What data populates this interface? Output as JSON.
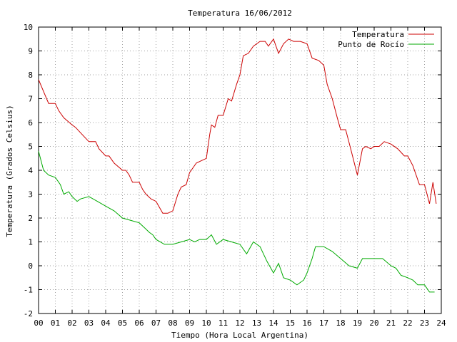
{
  "chart_data": {
    "type": "line",
    "title": "Temperatura 16/06/2012",
    "xlabel": "Tiempo (Hora Local Argentina)",
    "ylabel": "Temperatura (Grados Celsius)",
    "xlim": [
      0,
      24
    ],
    "ylim": [
      -2,
      10
    ],
    "x_ticks": [
      "00",
      "01",
      "02",
      "03",
      "04",
      "05",
      "06",
      "07",
      "08",
      "09",
      "10",
      "11",
      "12",
      "13",
      "14",
      "15",
      "16",
      "17",
      "18",
      "19",
      "20",
      "21",
      "22",
      "23",
      "24"
    ],
    "y_ticks": [
      "-2",
      "-1",
      "0",
      "1",
      "2",
      "3",
      "4",
      "5",
      "6",
      "7",
      "8",
      "9",
      "10"
    ],
    "grid": true,
    "legend_position": "top-right",
    "series": [
      {
        "name": "Temperatura",
        "color": "#cc0000",
        "x": [
          0,
          0.3,
          0.6,
          1.0,
          1.2,
          1.5,
          2.0,
          2.2,
          2.6,
          3.0,
          3.4,
          3.6,
          4.0,
          4.2,
          4.5,
          5.0,
          5.2,
          5.4,
          5.6,
          6.0,
          6.2,
          6.4,
          6.7,
          7.0,
          7.4,
          7.7,
          8.0,
          8.3,
          8.5,
          8.8,
          9.0,
          9.4,
          9.7,
          10.0,
          10.2,
          10.3,
          10.5,
          10.7,
          11.0,
          11.3,
          11.5,
          11.8,
          12.0,
          12.2,
          12.5,
          12.8,
          13.0,
          13.2,
          13.5,
          13.7,
          14.0,
          14.3,
          14.6,
          14.9,
          15.2,
          15.6,
          16.0,
          16.3,
          16.7,
          17.0,
          17.2,
          17.5,
          17.8,
          18.0,
          18.3,
          18.6,
          19.0,
          19.3,
          19.5,
          19.8,
          20.0,
          20.3,
          20.6,
          21.0,
          21.4,
          21.8,
          22.0,
          22.3,
          22.7,
          23.0,
          23.3,
          23.5,
          23.7
        ],
        "y": [
          7.8,
          7.3,
          6.8,
          6.8,
          6.5,
          6.2,
          5.9,
          5.8,
          5.5,
          5.2,
          5.2,
          4.9,
          4.6,
          4.6,
          4.3,
          4.0,
          4.0,
          3.8,
          3.5,
          3.5,
          3.2,
          3.0,
          2.8,
          2.7,
          2.2,
          2.2,
          2.3,
          3.0,
          3.3,
          3.4,
          3.9,
          4.3,
          4.4,
          4.5,
          5.5,
          5.9,
          5.8,
          6.3,
          6.3,
          7.0,
          6.9,
          7.6,
          8.0,
          8.8,
          8.9,
          9.2,
          9.3,
          9.4,
          9.4,
          9.2,
          9.5,
          8.9,
          9.3,
          9.5,
          9.4,
          9.4,
          9.3,
          8.7,
          8.6,
          8.4,
          7.6,
          7.0,
          6.2,
          5.7,
          5.7,
          4.9,
          3.8,
          4.9,
          5.0,
          4.9,
          5.0,
          5.0,
          5.2,
          5.1,
          4.9,
          4.6,
          4.6,
          4.2,
          3.4,
          3.4,
          2.6,
          3.5,
          2.6
        ]
      },
      {
        "name": "Punto de Rocío",
        "color": "#00aa00",
        "x": [
          0,
          0.3,
          0.6,
          1.0,
          1.3,
          1.5,
          1.8,
          2.0,
          2.3,
          2.5,
          3.0,
          3.5,
          4.0,
          4.5,
          5.0,
          5.5,
          6.0,
          6.3,
          6.6,
          6.8,
          7.0,
          7.5,
          8.0,
          8.5,
          9.0,
          9.3,
          9.6,
          10.0,
          10.3,
          10.6,
          11.0,
          11.5,
          12.0,
          12.4,
          12.8,
          13.2,
          13.6,
          14.0,
          14.3,
          14.6,
          15.0,
          15.4,
          15.8,
          16.0,
          16.3,
          16.5,
          17.0,
          17.5,
          18.0,
          18.5,
          19.0,
          19.3,
          19.6,
          20.0,
          20.5,
          21.0,
          21.3,
          21.6,
          22.0,
          22.3,
          22.6,
          23.0,
          23.3,
          23.6
        ],
        "y": [
          4.8,
          4.0,
          3.8,
          3.7,
          3.4,
          3.0,
          3.1,
          2.9,
          2.7,
          2.8,
          2.9,
          2.7,
          2.5,
          2.3,
          2.0,
          1.9,
          1.8,
          1.6,
          1.4,
          1.3,
          1.1,
          0.9,
          0.9,
          1.0,
          1.1,
          1.0,
          1.1,
          1.1,
          1.3,
          0.9,
          1.1,
          1.0,
          0.9,
          0.5,
          1.0,
          0.8,
          0.2,
          -0.3,
          0.1,
          -0.5,
          -0.6,
          -0.8,
          -0.6,
          -0.3,
          0.3,
          0.8,
          0.8,
          0.6,
          0.3,
          0.0,
          -0.1,
          0.3,
          0.3,
          0.3,
          0.3,
          0.0,
          -0.1,
          -0.4,
          -0.5,
          -0.6,
          -0.8,
          -0.8,
          -1.1,
          -1.1
        ]
      }
    ]
  }
}
